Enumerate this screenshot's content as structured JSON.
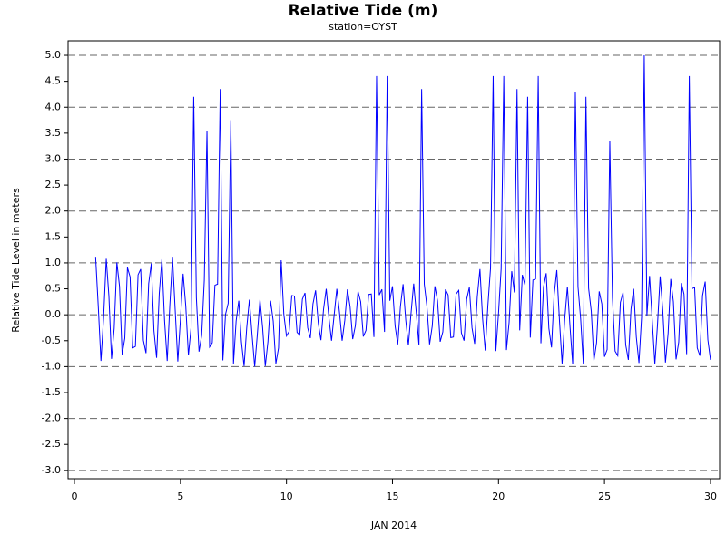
{
  "chart_data": {
    "type": "line",
    "title": "Relative Tide (m)",
    "subtitle": "station=OYST",
    "x_label": "JAN 2014",
    "y_label": "Relative Tide Level in meters",
    "color": "#0000ff",
    "grid": true,
    "xlim": [
      -0.3,
      30.43
    ],
    "xticks": [
      0,
      5,
      10,
      15,
      20,
      25,
      30
    ],
    "ylim": [
      -3.16,
      5.28
    ],
    "yticks": [
      {
        "value": -3,
        "label": "-3.0"
      },
      -2.5,
      {
        "value": -2,
        "label": "-2.0"
      },
      -1.5,
      {
        "value": -1,
        "label": "-1.0"
      },
      -0.5,
      {
        "value": 0,
        "label": "0.0"
      },
      0.5,
      {
        "value": 1,
        "label": "1.0"
      },
      1.5,
      {
        "value": 2,
        "label": "2.0"
      },
      2.5,
      {
        "value": 3,
        "label": "3.0"
      },
      3.5,
      {
        "value": 4,
        "label": "4.0"
      },
      4.5,
      {
        "value": 5,
        "label": "5.0"
      }
    ],
    "x": [
      1,
      1.125,
      1.25,
      1.375,
      1.5,
      1.625,
      1.75,
      1.875,
      2,
      2.125,
      2.25,
      2.375,
      2.5,
      2.625,
      2.75,
      2.875,
      3,
      3.125,
      3.25,
      3.375,
      3.5,
      3.625,
      3.75,
      3.875,
      4,
      4.125,
      4.25,
      4.375,
      4.5,
      4.625,
      4.75,
      4.875,
      5,
      5.125,
      5.25,
      5.375,
      5.5,
      5.625,
      5.75,
      5.875,
      6,
      6.125,
      6.25,
      6.375,
      6.5,
      6.625,
      6.75,
      6.875,
      7,
      7.125,
      7.25,
      7.375,
      7.5,
      7.625,
      7.75,
      7.875,
      8,
      8.125,
      8.25,
      8.375,
      8.5,
      8.625,
      8.75,
      8.875,
      9,
      9.125,
      9.25,
      9.375,
      9.5,
      9.625,
      9.75,
      9.875,
      10,
      10.125,
      10.25,
      10.375,
      10.5,
      10.625,
      10.75,
      10.875,
      11,
      11.125,
      11.25,
      11.375,
      11.5,
      11.625,
      11.75,
      11.875,
      12,
      12.125,
      12.25,
      12.375,
      12.5,
      12.625,
      12.75,
      12.875,
      13,
      13.125,
      13.25,
      13.375,
      13.5,
      13.625,
      13.75,
      13.875,
      14,
      14.125,
      14.25,
      14.375,
      14.5,
      14.625,
      14.75,
      14.875,
      15,
      15.125,
      15.25,
      15.375,
      15.5,
      15.625,
      15.75,
      15.875,
      16,
      16.125,
      16.25,
      16.375,
      16.5,
      16.625,
      16.75,
      16.875,
      17,
      17.125,
      17.25,
      17.375,
      17.5,
      17.625,
      17.75,
      17.875,
      18,
      18.125,
      18.25,
      18.375,
      18.5,
      18.625,
      18.75,
      18.875,
      19,
      19.125,
      19.25,
      19.375,
      19.5,
      19.625,
      19.75,
      19.875,
      20,
      20.125,
      20.25,
      20.375,
      20.5,
      20.625,
      20.75,
      20.875,
      21,
      21.125,
      21.25,
      21.375,
      21.5,
      21.625,
      21.75,
      21.875,
      22,
      22.125,
      22.25,
      22.375,
      22.5,
      22.625,
      22.75,
      22.875,
      23,
      23.125,
      23.25,
      23.375,
      23.5,
      23.625,
      23.75,
      23.875,
      24,
      24.125,
      24.25,
      24.375,
      24.5,
      24.625,
      24.75,
      24.875,
      25,
      25.125,
      25.25,
      25.375,
      25.5,
      25.625,
      25.75,
      25.875,
      26,
      26.125,
      26.25,
      26.375,
      26.5,
      26.625,
      26.75,
      26.875,
      27,
      27.125,
      27.25,
      27.375,
      27.5,
      27.625,
      27.75,
      27.875,
      28,
      28.125,
      28.25,
      28.375,
      28.5,
      28.625,
      28.75,
      28.875,
      29,
      29.125,
      29.25,
      29.375,
      29.5,
      29.625,
      29.75,
      29.875,
      30
    ],
    "values": [
      1.1,
      0.15,
      -0.89,
      -0.06,
      1.08,
      0.36,
      -0.85,
      -0.26,
      1.01,
      0.55,
      -0.77,
      -0.45,
      0.91,
      0.73,
      -0.64,
      -0.61,
      0.77,
      0.88,
      -0.49,
      -0.74,
      0.6,
      0.99,
      -0.31,
      -0.83,
      0.41,
      1.07,
      -0.11,
      -0.89,
      0.2,
      1.1,
      0.1,
      -0.9,
      -0.08,
      0.79,
      0.17,
      -0.78,
      -0.25,
      4.2,
      0.33,
      -0.71,
      -0.4,
      0.67,
      3.55,
      -0.62,
      -0.54,
      0.57,
      0.59,
      4.35,
      -0.88,
      0.01,
      0.22,
      3.75,
      -0.94,
      -0.12,
      0.27,
      -0.52,
      -0.99,
      -0.25,
      0.29,
      -0.38,
      -1.0,
      -0.38,
      0.29,
      -0.25,
      -0.99,
      -0.52,
      0.27,
      -0.12,
      -0.94,
      -0.64,
      1.05,
      0.01,
      -0.41,
      -0.32,
      0.37,
      0.36,
      -0.34,
      -0.39,
      0.3,
      0.42,
      -0.25,
      -0.45,
      0.21,
      0.47,
      -0.16,
      -0.49,
      0.11,
      0.5,
      -0.05,
      -0.5,
      0,
      0.5,
      0.05,
      -0.5,
      -0.11,
      0.49,
      0.16,
      -0.47,
      -0.21,
      0.45,
      0.25,
      -0.42,
      -0.3,
      0.39,
      0.4,
      -0.43,
      4.6,
      0.38,
      0.49,
      -0.33,
      4.6,
      0.27,
      0.55,
      -0.22,
      -0.57,
      0.16,
      0.59,
      -0.1,
      -0.59,
      0.03,
      0.6,
      0.03,
      -0.59,
      4.35,
      0.59,
      0.16,
      -0.57,
      -0.22,
      0.55,
      0.27,
      -0.52,
      -0.33,
      0.49,
      0.38,
      -0.44,
      -0.43,
      0.4,
      0.47,
      -0.35,
      -0.5,
      0.3,
      0.53,
      -0.25,
      -0.56,
      0.35,
      0.88,
      -0.07,
      -0.69,
      0.18,
      0.9,
      4.6,
      -0.7,
      0.02,
      0.89,
      4.6,
      -0.68,
      -0.15,
      0.84,
      0.43,
      4.35,
      -0.3,
      0.77,
      0.57,
      4.2,
      -0.44,
      0.67,
      0.69,
      4.6,
      -0.55,
      0.54,
      0.8,
      -0.26,
      -0.63,
      0.39,
      0.86,
      -0.11,
      -0.94,
      -0.08,
      0.54,
      -0.24,
      -0.95,
      4.3,
      0.54,
      -0.08,
      -0.94,
      4.2,
      0.51,
      0.07,
      -0.88,
      -0.54,
      0.45,
      0.21,
      -0.81,
      -0.67,
      3.35,
      0.33,
      -0.7,
      -0.79,
      0.24,
      0.43,
      -0.58,
      -0.87,
      0.11,
      0.5,
      -0.43,
      -0.93,
      -0.04,
      5.0,
      -0.02,
      0.75,
      -0.1,
      -0.95,
      -0.19,
      0.74,
      0.08,
      -0.92,
      -0.36,
      0.69,
      0.25,
      -0.86,
      -0.53,
      0.61,
      0.4,
      -0.76,
      4.6,
      0.5,
      0.53,
      -0.64,
      -0.79,
      0.37,
      0.64,
      -0.48,
      -0.87
    ]
  }
}
